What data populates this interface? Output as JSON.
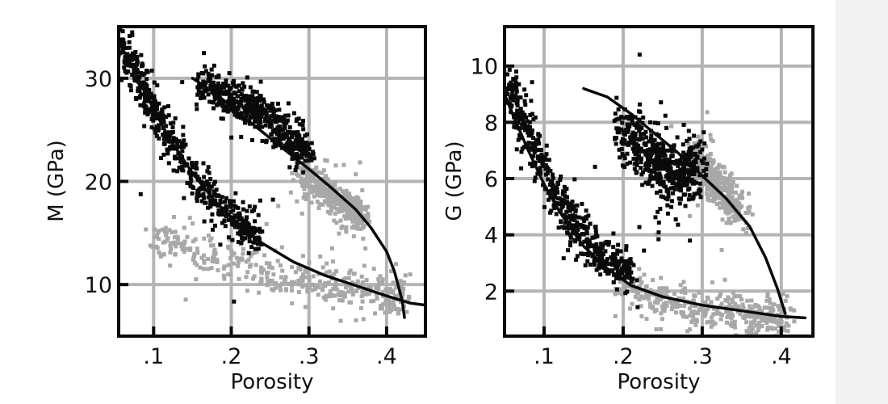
{
  "colors": {
    "black_cluster": "#0a0a0a",
    "gray_cluster": "#a8a8a8",
    "grid": "#b4b4b4",
    "frame": "#0a0a0a",
    "curve": "#0a0a0a"
  },
  "chart_data": [
    {
      "type": "scatter",
      "xlabel": "Porosity",
      "ylabel": "M (GPa)",
      "xlim": [
        0.055,
        0.45
      ],
      "ylim": [
        5,
        35
      ],
      "xticks": [
        0.1,
        0.2,
        0.3,
        0.4
      ],
      "xtick_labels": [
        ".1",
        ".2",
        ".3",
        ".4"
      ],
      "yticks": [
        10,
        20,
        30
      ],
      "ytick_labels": [
        "10",
        "20",
        "30"
      ],
      "grid": true,
      "series": [
        {
          "color": "black",
          "trend": [
            [
              0.055,
              34
            ],
            [
              0.08,
              30
            ],
            [
              0.1,
              27
            ],
            [
              0.12,
              24
            ],
            [
              0.15,
              20.5
            ],
            [
              0.18,
              18
            ],
            [
              0.21,
              16
            ],
            [
              0.235,
              14.5
            ]
          ],
          "spread": 0.9
        },
        {
          "color": "black",
          "trend": [
            [
              0.16,
              29.5
            ],
            [
              0.2,
              28
            ],
            [
              0.24,
              26.5
            ],
            [
              0.27,
              24.5
            ],
            [
              0.3,
              22.5
            ]
          ],
          "spread": 1.0
        },
        {
          "color": "gray",
          "trend": [
            [
              0.1,
              14.2
            ],
            [
              0.15,
              13
            ],
            [
              0.2,
              12.2
            ],
            [
              0.25,
              11
            ],
            [
              0.3,
              10.5
            ],
            [
              0.35,
              9.8
            ],
            [
              0.4,
              9
            ],
            [
              0.425,
              8.6
            ]
          ],
          "spread": 1.0
        },
        {
          "color": "gray",
          "trend": [
            [
              0.29,
              20.5
            ],
            [
              0.32,
              19.2
            ],
            [
              0.35,
              17.5
            ],
            [
              0.37,
              16.3
            ]
          ],
          "spread": 0.8
        }
      ],
      "curves": [
        {
          "points": [
            [
              0.055,
              33.5
            ],
            [
              0.07,
              31.5
            ],
            [
              0.09,
              28.5
            ],
            [
              0.1,
              27
            ],
            [
              0.12,
              24.2
            ],
            [
              0.15,
              20.8
            ],
            [
              0.18,
              18
            ],
            [
              0.21,
              15.8
            ],
            [
              0.24,
              14
            ],
            [
              0.28,
              12.2
            ],
            [
              0.32,
              10.9
            ],
            [
              0.36,
              9.9
            ],
            [
              0.4,
              8.9
            ],
            [
              0.43,
              8.2
            ],
            [
              0.45,
              8
            ]
          ]
        },
        {
          "points": [
            [
              0.15,
              30
            ],
            [
              0.18,
              28.5
            ],
            [
              0.21,
              26.6
            ],
            [
              0.24,
              24.8
            ],
            [
              0.27,
              23
            ],
            [
              0.3,
              21.2
            ],
            [
              0.33,
              19.3
            ],
            [
              0.36,
              17.3
            ],
            [
              0.38,
              15.5
            ],
            [
              0.4,
              13.2
            ],
            [
              0.41,
              11.3
            ],
            [
              0.42,
              8.5
            ],
            [
              0.423,
              6.8
            ]
          ]
        }
      ]
    },
    {
      "type": "scatter",
      "xlabel": "Porosity",
      "ylabel": "G (GPa)",
      "xlim": [
        0.05,
        0.44
      ],
      "ylim": [
        0.4,
        11.4
      ],
      "xticks": [
        0.1,
        0.2,
        0.3,
        0.4
      ],
      "xtick_labels": [
        ".1",
        ".2",
        ".3",
        ".4"
      ],
      "yticks": [
        2,
        4,
        6,
        8,
        10
      ],
      "ytick_labels": [
        "2",
        "4",
        "6",
        "8",
        "10"
      ],
      "grid": true,
      "series": [
        {
          "color": "black",
          "trend": [
            [
              0.055,
              9.5
            ],
            [
              0.07,
              8.2
            ],
            [
              0.09,
              7
            ],
            [
              0.11,
              5.7
            ],
            [
              0.13,
              4.6
            ],
            [
              0.15,
              3.9
            ],
            [
              0.17,
              3.3
            ],
            [
              0.19,
              2.9
            ],
            [
              0.21,
              2.7
            ]
          ],
          "spread": 0.35
        },
        {
          "color": "black",
          "trend": [
            [
              0.19,
              7.8
            ],
            [
              0.22,
              7.3
            ],
            [
              0.24,
              6.6
            ],
            [
              0.26,
              6
            ],
            [
              0.28,
              6.2
            ],
            [
              0.3,
              6.6
            ]
          ],
          "spread": 0.55
        },
        {
          "color": "gray",
          "trend": [
            [
              0.19,
              2.3
            ],
            [
              0.23,
              1.8
            ],
            [
              0.27,
              1.5
            ],
            [
              0.31,
              1.3
            ],
            [
              0.35,
              1.2
            ],
            [
              0.38,
              1.1
            ],
            [
              0.41,
              1
            ]
          ],
          "spread": 0.35
        },
        {
          "color": "gray",
          "trend": [
            [
              0.29,
              6.8
            ],
            [
              0.31,
              6
            ],
            [
              0.33,
              5.4
            ],
            [
              0.35,
              4.8
            ]
          ],
          "spread": 0.35
        }
      ],
      "curves": [
        {
          "points": [
            [
              0.05,
              9
            ],
            [
              0.06,
              8.3
            ],
            [
              0.08,
              7
            ],
            [
              0.1,
              5.8
            ],
            [
              0.12,
              4.8
            ],
            [
              0.15,
              3.6
            ],
            [
              0.18,
              2.8
            ],
            [
              0.21,
              2.2
            ],
            [
              0.25,
              1.8
            ],
            [
              0.3,
              1.5
            ],
            [
              0.35,
              1.3
            ],
            [
              0.4,
              1.1
            ],
            [
              0.43,
              1.05
            ]
          ]
        },
        {
          "points": [
            [
              0.15,
              9.2
            ],
            [
              0.18,
              8.9
            ],
            [
              0.21,
              8.3
            ],
            [
              0.24,
              7.6
            ],
            [
              0.27,
              6.9
            ],
            [
              0.3,
              6.1
            ],
            [
              0.33,
              5.3
            ],
            [
              0.36,
              4.3
            ],
            [
              0.38,
              3.2
            ],
            [
              0.395,
              2.1
            ],
            [
              0.405,
              1.2
            ]
          ]
        }
      ]
    }
  ]
}
